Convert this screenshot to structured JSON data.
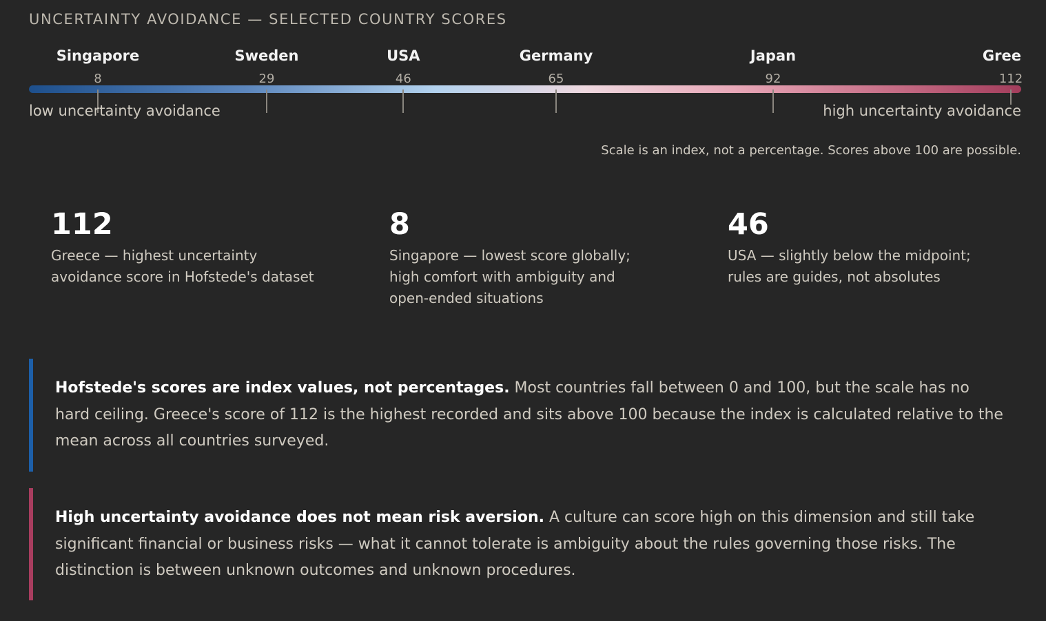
{
  "chart_data": {
    "type": "scale",
    "title": "UNCERTAINTY AVOIDANCE — SELECTED COUNTRY SCORES",
    "categories": [
      "Singapore",
      "Sweden",
      "USA",
      "Germany",
      "Japan",
      "Gree"
    ],
    "values": [
      8,
      29,
      46,
      65,
      92,
      112
    ],
    "score_labels": [
      "8",
      "29",
      "46",
      "65",
      "92",
      "112"
    ],
    "xlim": [
      0,
      112
    ],
    "low_label": "low uncertainty avoidance",
    "high_label": "high uncertainty avoidance",
    "note": "Scale is an index, not a percentage. Scores above 100 are possible.",
    "colors": {
      "low": "#1d4f8c",
      "mid": "#b3d2ee",
      "high": "#a33d5c"
    }
  },
  "stats": [
    {
      "value": "112",
      "desc_lines": [
        "Greece — highest uncertainty",
        "avoidance score in Hofstede's dataset"
      ]
    },
    {
      "value": "8",
      "desc_lines": [
        "Singapore — lowest score globally;",
        "high comfort with ambiguity and",
        "open-ended situations"
      ]
    },
    {
      "value": "46",
      "desc_lines": [
        "USA — slightly below the midpoint;",
        "rules are guides, not absolutes"
      ]
    }
  ],
  "callouts": [
    {
      "bold": "Hofstede's scores are index values, not percentages.",
      "text": " Most countries fall between 0 and 100, but the scale has no hard ceiling. Greece's score of 112 is the highest recorded and sits above 100 because the index is calculated relative to the mean across all countries surveyed.",
      "accent_color": "#1d5fa8"
    },
    {
      "bold": "High uncertainty avoidance does not mean risk aversion.",
      "text": " A culture can score high on this dimension and still take significant financial or business risks — what it cannot tolerate is ambiguity about the rules governing those risks. The distinction is between unknown outcomes and unknown procedures.",
      "accent_color": "#a83d5f"
    }
  ]
}
